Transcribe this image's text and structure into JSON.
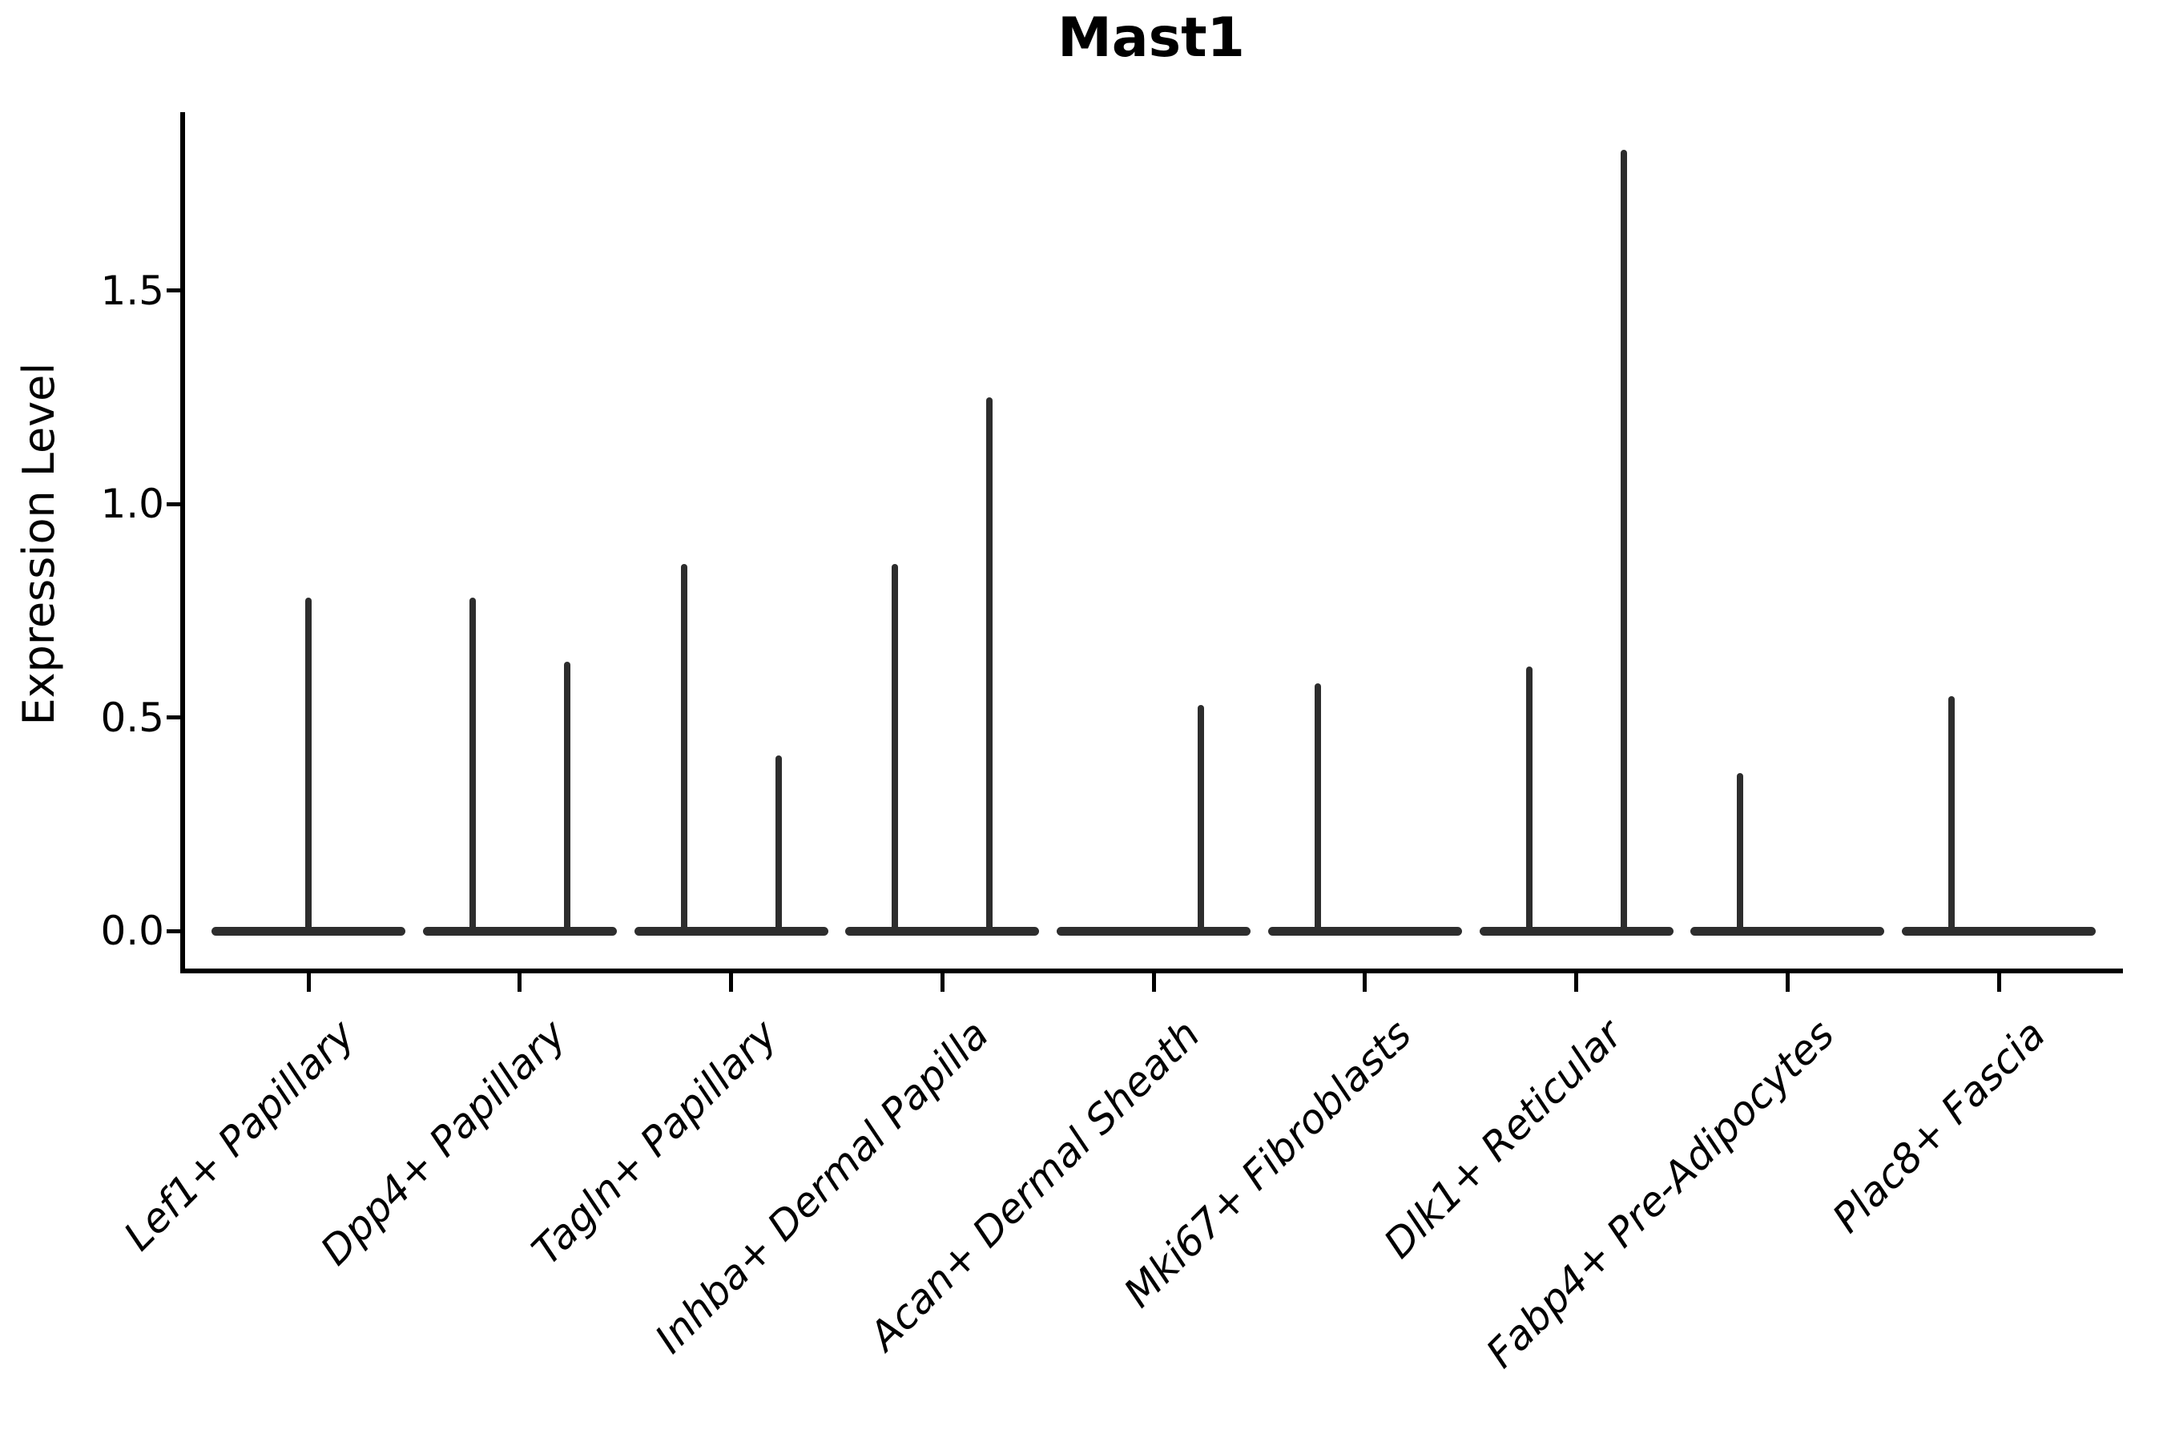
{
  "chart_data": {
    "type": "violin",
    "title": "Mast1",
    "ylabel": "Expression Level",
    "xlabel": "",
    "grid": false,
    "legend": null,
    "y_ticks": [
      {
        "value": 0.0,
        "label": "0.0"
      },
      {
        "value": 0.5,
        "label": "0.5"
      },
      {
        "value": 1.0,
        "label": "1.0"
      },
      {
        "value": 1.5,
        "label": "1.5"
      }
    ],
    "ylim": [
      0,
      1.92
    ],
    "categories": [
      "Lef1+ Papillary",
      "Dpp4+ Papillary",
      "Tagln+ Papillary",
      "Inhba+ Dermal Papilla",
      "Acan+ Dermal Sheath",
      "Mki67+ Fibroblasts",
      "Dlk1+ Reticular",
      "Fabp4+ Pre-Adipocytes",
      "Plac8+ Fascia"
    ],
    "violins": [
      {
        "category": "Lef1+ Papillary",
        "spikes": [
          {
            "side": "center",
            "max": 0.78
          }
        ]
      },
      {
        "category": "Dpp4+ Papillary",
        "spikes": [
          {
            "side": "left",
            "max": 0.78
          },
          {
            "side": "right",
            "max": 0.63
          }
        ]
      },
      {
        "category": "Tagln+ Papillary",
        "spikes": [
          {
            "side": "left",
            "max": 0.86
          },
          {
            "side": "right",
            "max": 0.41
          }
        ]
      },
      {
        "category": "Inhba+ Dermal Papilla",
        "spikes": [
          {
            "side": "left",
            "max": 0.86
          },
          {
            "side": "right",
            "max": 1.25
          }
        ]
      },
      {
        "category": "Acan+ Dermal Sheath",
        "spikes": [
          {
            "side": "right",
            "max": 0.53
          }
        ]
      },
      {
        "category": "Mki67+ Fibroblasts",
        "spikes": [
          {
            "side": "left",
            "max": 0.58
          }
        ]
      },
      {
        "category": "Dlk1+ Reticular",
        "spikes": [
          {
            "side": "left",
            "max": 0.62
          },
          {
            "side": "right",
            "max": 1.83
          }
        ]
      },
      {
        "category": "Fabp4+ Pre-Adipocytes",
        "spikes": [
          {
            "side": "left",
            "max": 0.37
          }
        ]
      },
      {
        "category": "Plac8+ Fascia",
        "spikes": [
          {
            "side": "left",
            "max": 0.55
          }
        ]
      }
    ],
    "baseline_value": 0.0,
    "colors": {
      "violin": "#2d2d2d",
      "axis": "#000000",
      "text": "#000000",
      "background": "#ffffff"
    }
  }
}
